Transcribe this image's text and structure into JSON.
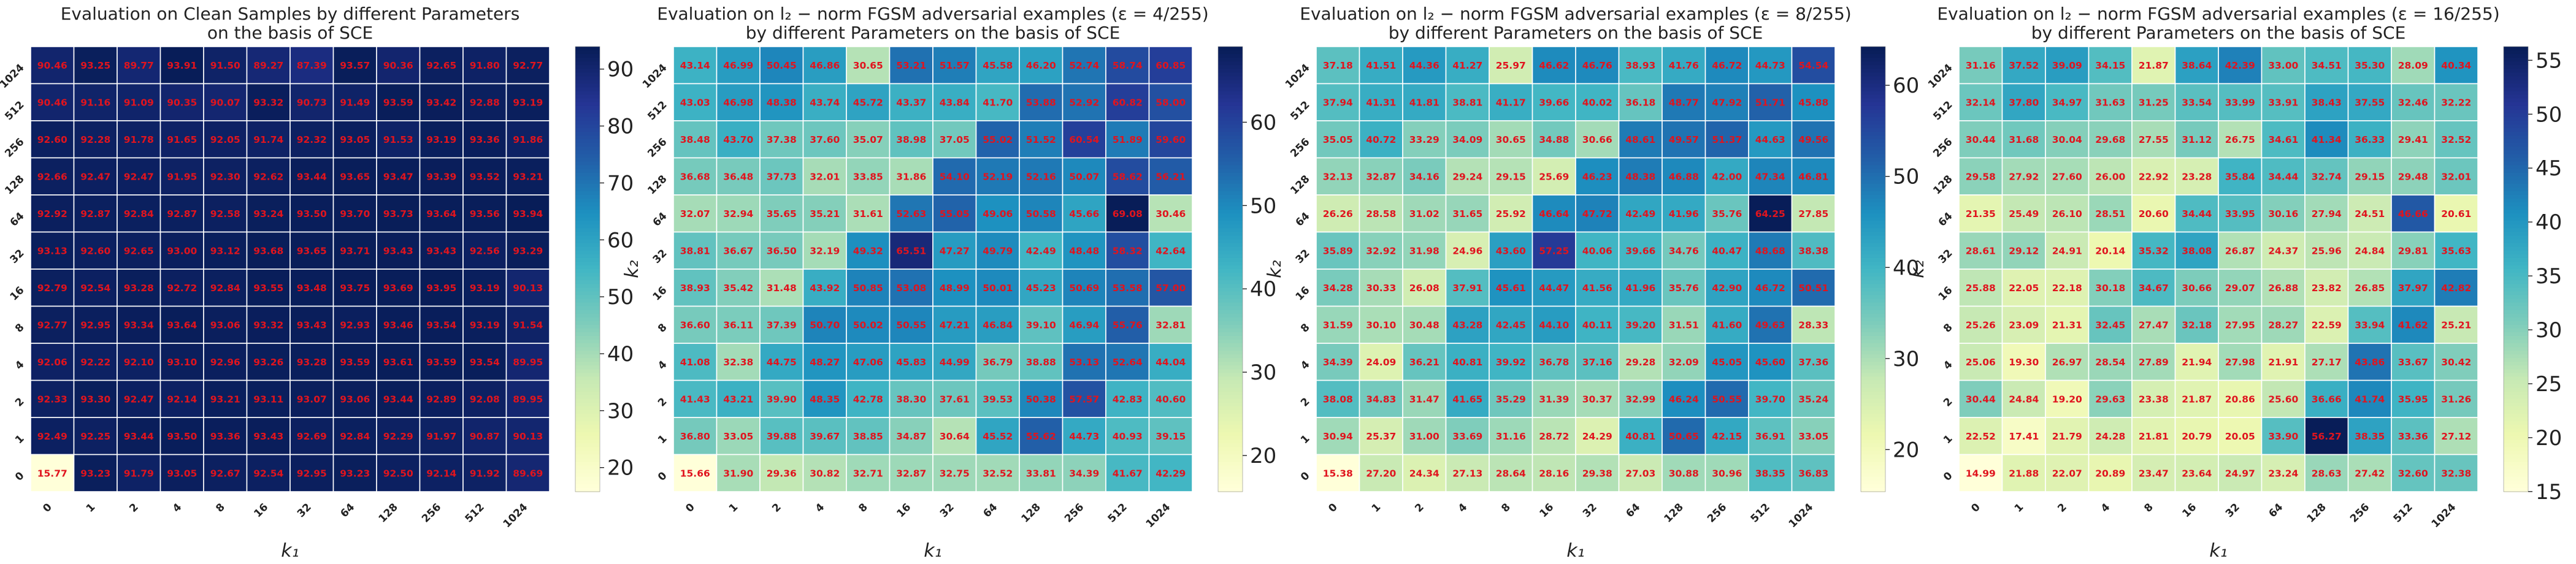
{
  "colormap": [
    "#ffffd9",
    "#edf8b1",
    "#c7e9b4",
    "#7fcdbb",
    "#41b6c4",
    "#1d91c0",
    "#225ea8",
    "#253494",
    "#081d58"
  ],
  "label_color": "#e0141e",
  "chart_data": [
    {
      "type": "heatmap",
      "title_lines": [
        "Evaluation on Clean Samples by different Parameters",
        "on the basis of SCE"
      ],
      "xlabel": "k₁",
      "ylabel": "k₂",
      "x_ticks": [
        "0",
        "1",
        "2",
        "4",
        "8",
        "16",
        "32",
        "64",
        "128",
        "256",
        "512",
        "1024"
      ],
      "y_ticks": [
        "1024",
        "512",
        "256",
        "128",
        "64",
        "32",
        "16",
        "8",
        "4",
        "2",
        "1",
        "0"
      ],
      "vmin": 15.77,
      "vmax": 93.95,
      "colorbar_ticks": [
        20,
        30,
        40,
        50,
        60,
        70,
        80,
        90
      ],
      "rows": [
        [
          90.46,
          93.25,
          89.77,
          93.91,
          91.5,
          89.27,
          87.39,
          93.57,
          90.36,
          92.65,
          91.8,
          92.77
        ],
        [
          90.46,
          91.16,
          91.09,
          90.35,
          90.07,
          93.32,
          90.73,
          91.49,
          93.59,
          93.42,
          92.88,
          93.19
        ],
        [
          92.6,
          92.28,
          91.78,
          91.65,
          92.05,
          91.74,
          92.32,
          93.05,
          91.53,
          93.19,
          93.36,
          91.86
        ],
        [
          92.66,
          92.47,
          92.47,
          91.95,
          92.3,
          92.62,
          93.44,
          93.65,
          93.47,
          93.39,
          93.52,
          93.21
        ],
        [
          92.92,
          92.87,
          92.84,
          92.87,
          92.58,
          93.24,
          93.5,
          93.7,
          93.73,
          93.64,
          93.56,
          93.94
        ],
        [
          93.13,
          92.6,
          92.65,
          93.0,
          93.12,
          93.68,
          93.65,
          93.71,
          93.43,
          93.43,
          92.56,
          93.29
        ],
        [
          92.79,
          92.54,
          93.28,
          92.72,
          92.84,
          93.55,
          93.48,
          93.75,
          93.69,
          93.95,
          93.19,
          90.13
        ],
        [
          92.77,
          92.95,
          93.34,
          93.64,
          93.06,
          93.32,
          93.43,
          92.93,
          93.46,
          93.54,
          93.19,
          91.54
        ],
        [
          92.06,
          92.22,
          92.1,
          93.1,
          92.96,
          93.26,
          93.28,
          93.59,
          93.61,
          93.59,
          93.54,
          89.95
        ],
        [
          92.33,
          93.3,
          92.47,
          92.14,
          93.21,
          93.11,
          93.07,
          93.06,
          93.44,
          92.89,
          92.08,
          89.95
        ],
        [
          92.49,
          92.25,
          93.44,
          93.5,
          93.36,
          93.43,
          92.69,
          92.84,
          92.29,
          91.97,
          90.87,
          90.13
        ],
        [
          15.77,
          93.23,
          91.79,
          93.05,
          92.67,
          92.54,
          92.95,
          93.23,
          92.5,
          92.14,
          91.92,
          89.69
        ]
      ]
    },
    {
      "type": "heatmap",
      "title_lines": [
        "Evaluation on l₂ − norm FGSM adversarial examples (ε = 4/255)",
        "by different Parameters on the basis of SCE"
      ],
      "xlabel": "k₁",
      "ylabel": "k₂",
      "x_ticks": [
        "0",
        "1",
        "2",
        "4",
        "8",
        "16",
        "32",
        "64",
        "128",
        "256",
        "512",
        "1024"
      ],
      "y_ticks": [
        "1024",
        "512",
        "256",
        "128",
        "64",
        "32",
        "16",
        "8",
        "4",
        "2",
        "1",
        "0"
      ],
      "vmin": 15.66,
      "vmax": 69.08,
      "colorbar_ticks": [
        20,
        30,
        40,
        50,
        60
      ],
      "rows": [
        [
          43.14,
          46.99,
          50.45,
          46.86,
          30.65,
          53.21,
          51.57,
          45.58,
          46.2,
          52.74,
          58.74,
          60.85
        ],
        [
          43.03,
          46.98,
          48.38,
          43.74,
          45.72,
          43.37,
          43.84,
          41.7,
          53.88,
          52.92,
          60.82,
          58.0
        ],
        [
          38.48,
          43.7,
          37.38,
          37.6,
          35.07,
          38.98,
          37.05,
          55.02,
          51.52,
          60.54,
          51.89,
          59.6
        ],
        [
          36.68,
          36.48,
          37.73,
          32.01,
          33.85,
          31.86,
          54.1,
          52.19,
          52.16,
          50.07,
          58.62,
          56.21
        ],
        [
          32.07,
          32.94,
          35.65,
          35.21,
          31.61,
          52.63,
          55.05,
          49.06,
          50.58,
          45.66,
          69.08,
          30.46
        ],
        [
          38.81,
          36.67,
          36.5,
          32.19,
          49.32,
          65.51,
          47.27,
          49.79,
          42.49,
          48.48,
          58.32,
          42.64
        ],
        [
          38.93,
          35.42,
          31.48,
          43.92,
          50.85,
          53.08,
          48.99,
          50.01,
          45.23,
          50.69,
          53.58,
          57.0
        ],
        [
          36.6,
          36.11,
          37.39,
          50.7,
          50.02,
          50.55,
          47.21,
          46.84,
          39.1,
          46.94,
          55.76,
          32.81
        ],
        [
          41.08,
          32.38,
          44.75,
          48.27,
          47.06,
          45.83,
          44.99,
          36.79,
          38.88,
          53.13,
          52.64,
          44.04
        ],
        [
          41.43,
          43.21,
          39.9,
          48.35,
          42.78,
          38.3,
          37.61,
          39.53,
          50.38,
          57.57,
          42.83,
          40.6
        ],
        [
          36.8,
          33.05,
          39.88,
          39.67,
          38.85,
          34.87,
          30.64,
          45.52,
          55.62,
          44.73,
          40.93,
          39.15
        ],
        [
          15.66,
          31.9,
          29.36,
          30.82,
          32.71,
          32.87,
          32.75,
          32.52,
          33.81,
          34.39,
          41.67,
          42.29
        ]
      ]
    },
    {
      "type": "heatmap",
      "title_lines": [
        "Evaluation on l₂ − norm FGSM adversarial examples (ε = 8/255)",
        "by different Parameters on the basis of SCE"
      ],
      "xlabel": "k₁",
      "ylabel": "k₂",
      "x_ticks": [
        "0",
        "1",
        "2",
        "4",
        "8",
        "16",
        "32",
        "64",
        "128",
        "256",
        "512",
        "1024"
      ],
      "y_ticks": [
        "1024",
        "512",
        "256",
        "128",
        "64",
        "32",
        "16",
        "8",
        "4",
        "2",
        "1",
        "0"
      ],
      "vmin": 15.38,
      "vmax": 64.25,
      "colorbar_ticks": [
        20,
        30,
        40,
        50,
        60
      ],
      "rows": [
        [
          37.18,
          41.51,
          44.36,
          41.27,
          25.97,
          46.62,
          46.76,
          38.93,
          41.76,
          46.72,
          44.73,
          54.54
        ],
        [
          37.94,
          41.31,
          41.81,
          38.81,
          41.17,
          39.66,
          40.02,
          36.18,
          48.77,
          47.92,
          51.71,
          45.88
        ],
        [
          35.05,
          40.72,
          33.29,
          34.09,
          30.65,
          34.88,
          30.66,
          48.61,
          49.57,
          51.37,
          44.63,
          49.56
        ],
        [
          32.13,
          32.87,
          34.16,
          29.24,
          29.15,
          25.69,
          46.23,
          48.38,
          46.88,
          42.0,
          47.34,
          46.81
        ],
        [
          26.26,
          28.58,
          31.02,
          31.65,
          25.92,
          46.64,
          47.72,
          42.49,
          41.96,
          35.76,
          64.25,
          27.85
        ],
        [
          35.89,
          32.92,
          31.98,
          24.96,
          43.6,
          57.25,
          40.06,
          39.66,
          34.76,
          40.47,
          48.68,
          38.38
        ],
        [
          34.28,
          30.33,
          26.08,
          37.91,
          45.61,
          44.47,
          41.56,
          41.96,
          35.76,
          42.9,
          46.72,
          50.51
        ],
        [
          31.59,
          30.1,
          30.48,
          43.28,
          42.45,
          44.1,
          40.11,
          39.2,
          31.51,
          41.6,
          49.63,
          28.33
        ],
        [
          34.39,
          24.09,
          36.21,
          40.81,
          39.92,
          36.78,
          37.16,
          29.28,
          32.09,
          45.05,
          45.6,
          37.36
        ],
        [
          38.08,
          34.83,
          31.47,
          41.65,
          35.29,
          31.39,
          30.37,
          32.99,
          46.24,
          50.55,
          39.7,
          35.24
        ],
        [
          30.94,
          25.37,
          31.0,
          33.69,
          31.16,
          28.72,
          24.29,
          40.81,
          50.65,
          42.15,
          36.91,
          33.05
        ],
        [
          15.38,
          27.2,
          24.34,
          27.13,
          28.64,
          28.16,
          29.38,
          27.03,
          30.88,
          30.96,
          38.35,
          36.83
        ]
      ]
    },
    {
      "type": "heatmap",
      "title_lines": [
        "Evaluation on l₂ − norm FGSM adversarial examples (ε = 16/255)",
        "by different Parameters on the basis of SCE"
      ],
      "xlabel": "k₁",
      "ylabel": "k₂",
      "x_ticks": [
        "0",
        "1",
        "2",
        "4",
        "8",
        "16",
        "32",
        "64",
        "128",
        "256",
        "512",
        "1024"
      ],
      "y_ticks": [
        "1024",
        "512",
        "256",
        "128",
        "64",
        "32",
        "16",
        "8",
        "4",
        "2",
        "1",
        "0"
      ],
      "vmin": 14.99,
      "vmax": 56.27,
      "colorbar_ticks": [
        15,
        20,
        25,
        30,
        35,
        40,
        45,
        50,
        55
      ],
      "rows": [
        [
          31.16,
          37.52,
          39.09,
          34.15,
          21.87,
          38.64,
          42.39,
          33.0,
          34.51,
          35.3,
          28.09,
          40.34
        ],
        [
          32.14,
          37.8,
          34.97,
          31.63,
          31.25,
          33.54,
          33.99,
          33.91,
          38.43,
          37.55,
          32.46,
          32.22
        ],
        [
          30.44,
          31.68,
          30.04,
          29.68,
          27.55,
          31.12,
          26.75,
          34.61,
          41.34,
          36.33,
          29.41,
          32.52
        ],
        [
          29.58,
          27.92,
          27.6,
          26.0,
          22.92,
          23.28,
          35.84,
          34.44,
          32.74,
          29.15,
          29.48,
          32.01
        ],
        [
          21.35,
          25.49,
          26.1,
          28.51,
          20.6,
          34.44,
          33.95,
          30.16,
          27.94,
          24.51,
          46.66,
          20.61
        ],
        [
          28.61,
          29.12,
          24.91,
          20.14,
          35.32,
          38.08,
          26.87,
          24.37,
          25.96,
          24.84,
          29.81,
          35.63
        ],
        [
          25.88,
          22.05,
          22.18,
          30.18,
          34.67,
          30.66,
          29.07,
          26.88,
          23.82,
          26.85,
          37.97,
          42.82
        ],
        [
          25.26,
          23.09,
          21.31,
          32.45,
          27.47,
          32.18,
          27.95,
          28.27,
          22.59,
          33.94,
          41.62,
          25.21
        ],
        [
          25.06,
          19.3,
          26.97,
          28.54,
          27.89,
          21.94,
          27.98,
          21.91,
          27.17,
          43.86,
          33.67,
          30.42
        ],
        [
          30.44,
          24.84,
          19.2,
          29.63,
          23.38,
          21.87,
          20.86,
          25.6,
          36.66,
          41.74,
          35.95,
          31.26
        ],
        [
          22.52,
          17.41,
          21.79,
          24.28,
          21.81,
          20.79,
          20.05,
          33.9,
          56.27,
          38.35,
          33.36,
          27.12
        ],
        [
          14.99,
          21.88,
          22.07,
          20.89,
          23.47,
          23.64,
          24.97,
          23.24,
          28.63,
          27.42,
          32.6,
          32.38
        ]
      ]
    }
  ]
}
